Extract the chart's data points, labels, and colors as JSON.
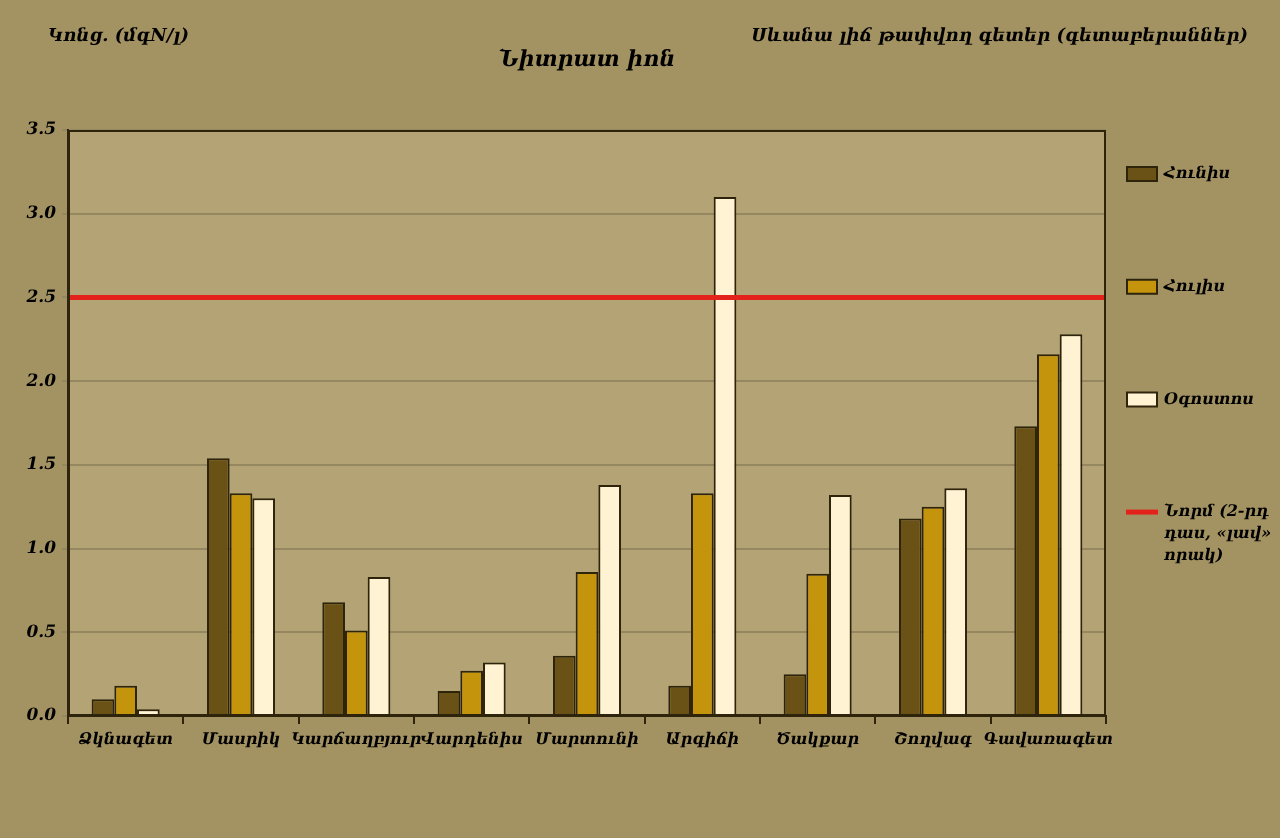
{
  "chart_data": {
    "type": "bar",
    "title": "Նիտրատ իոն",
    "ylabel": "Կոնց. (մգN/լ)",
    "xlabel": "Սևանա լիճ թափվող գետեր (գետաբերաններ)",
    "categories": [
      "Ձկնագետ",
      "Մասրիկ",
      "Կարճաղբյուր",
      "Վարդենիս",
      "Մարտունի",
      "Արգիճի",
      "Ծակքար",
      "Շողվագ",
      "Գավառագետ"
    ],
    "series": [
      {
        "name": "Հունիս",
        "color": "#6a5115",
        "values": [
          0.1,
          1.54,
          0.68,
          0.15,
          0.36,
          0.18,
          0.25,
          1.18,
          1.73
        ]
      },
      {
        "name": "Հուլիս",
        "color": "#c4940c",
        "values": [
          0.18,
          1.33,
          0.51,
          0.27,
          0.86,
          1.33,
          0.85,
          1.25,
          2.16
        ]
      },
      {
        "name": "Օգոստոս",
        "color": "#fff3d4",
        "values": [
          0.04,
          1.3,
          0.83,
          0.32,
          1.38,
          3.1,
          1.32,
          1.36,
          2.28
        ]
      }
    ],
    "ylim": [
      0,
      3.5
    ],
    "yticks": [
      {
        "value": 0,
        "label": "0.0"
      },
      0.5,
      {
        "value": 1,
        "label": "1.0"
      },
      1.5,
      {
        "value": 2,
        "label": "2.0"
      },
      2.5,
      {
        "value": 3,
        "label": "3.0"
      },
      3.5
    ],
    "grid": "y",
    "legend": "right",
    "ref_lines": [
      {
        "axis": "y",
        "value": 2.5,
        "label": "Նորմ (2-րդ դաս, «լավ» որակ)",
        "color": "#e3231b"
      }
    ]
  }
}
